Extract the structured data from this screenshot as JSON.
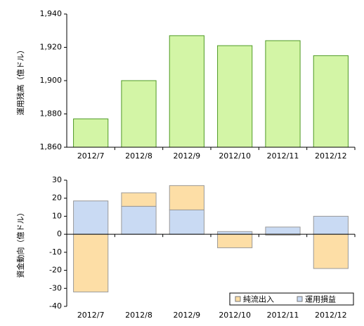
{
  "chart_data": [
    {
      "type": "bar",
      "y_label": "運用残高（億ドル）",
      "categories": [
        "2012/7",
        "2012/8",
        "2012/9",
        "2012/10",
        "2012/11",
        "2012/12"
      ],
      "values": [
        1877,
        1900,
        1927,
        1921,
        1924,
        1915
      ],
      "color": "#d3f5a6",
      "edge_color": "#4f9a26",
      "ylim": [
        1860,
        1940
      ],
      "yticks": [
        {
          "value": 1860,
          "label": "1,860"
        },
        {
          "value": 1880,
          "label": "1,880"
        },
        {
          "value": 1900,
          "label": "1,900"
        },
        {
          "value": 1920,
          "label": "1,920"
        },
        {
          "value": 1940,
          "label": "1,940"
        }
      ]
    },
    {
      "type": "stacked_bar",
      "y_label": "資金動向（億ドル）",
      "categories": [
        "2012/7",
        "2012/8",
        "2012/9",
        "2012/10",
        "2012/11",
        "2012/12"
      ],
      "series": [
        {
          "name": "運用損益",
          "color": "#c9daf3",
          "values": [
            18.5,
            15.5,
            13.5,
            1.5,
            4,
            10
          ]
        },
        {
          "name": "純流出入",
          "color": "#fddea6",
          "values": [
            -32,
            7.5,
            13.5,
            -7.5,
            -0.5,
            -19
          ]
        }
      ],
      "legend_order": [
        "純流出入",
        "運用損益"
      ],
      "legend": "lower right",
      "ylim": [
        -40,
        30
      ],
      "yticks": [
        -40,
        -30,
        -20,
        -10,
        0,
        10,
        20,
        30
      ]
    }
  ]
}
